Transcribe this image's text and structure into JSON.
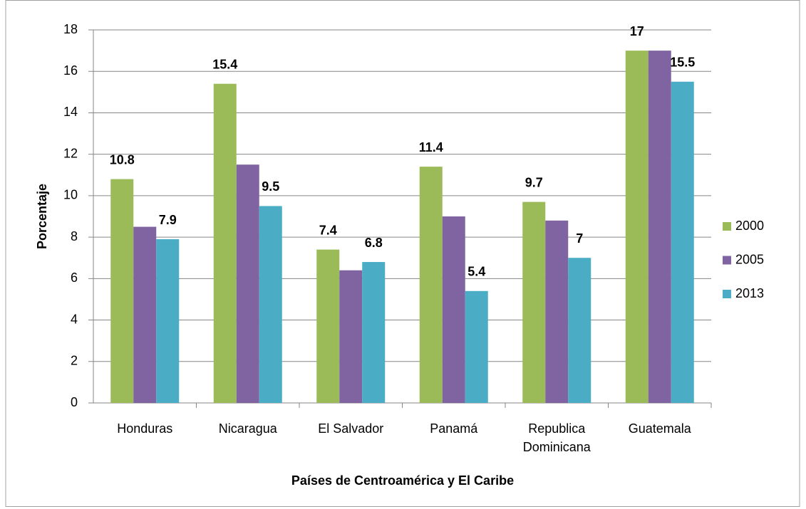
{
  "chart_data": {
    "type": "bar",
    "x_label": "Países de Centroamérica y El Caribe",
    "y_label": "Porcentaje",
    "categories": [
      "Honduras",
      "Nicaragua",
      "El Salvador",
      "Panamá",
      "Republica Dominicana",
      "Guatemala"
    ],
    "series": [
      {
        "name": "2000",
        "color": "#9bbb59",
        "values": [
          10.8,
          15.4,
          7.4,
          11.4,
          9.7,
          17
        ],
        "show_labels": true
      },
      {
        "name": "2005",
        "color": "#8064a2",
        "values": [
          8.5,
          11.5,
          6.4,
          9,
          8.8,
          17
        ],
        "show_labels": false
      },
      {
        "name": "2013",
        "color": "#4bacc6",
        "values": [
          7.9,
          9.5,
          6.8,
          5.4,
          7,
          15.5
        ],
        "show_labels": true
      }
    ],
    "ylim": [
      0,
      18
    ],
    "yticks": [
      0,
      2,
      4,
      6,
      8,
      10,
      12,
      14,
      16,
      18
    ],
    "grid": true,
    "legend": "right"
  }
}
